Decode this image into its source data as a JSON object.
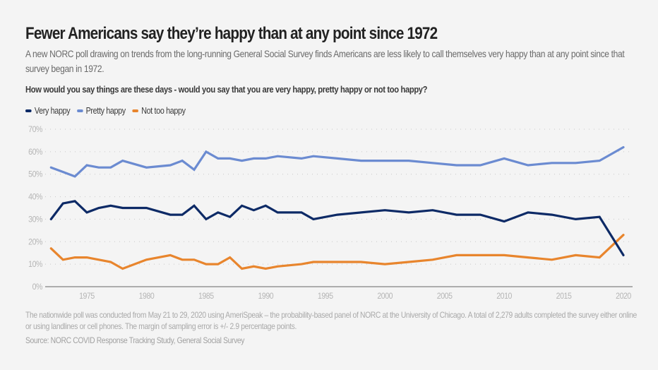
{
  "header": {
    "title": "Fewer Americans say they’re happy than at any point since 1972",
    "subtitle": "A new NORC poll drawing on trends from the long-running General Social Survey finds Americans are less likely to call themselves very happy than at any point since that survey began in 1972.",
    "question": "How would you say things are these days - would you say that you are very happy, pretty happy or not too happy?"
  },
  "footer": {
    "note": "The nationwide poll was conducted from May 21 to 29, 2020 using AmeriSpeak – the probability-based panel of NORC at the University of Chicago. A total of 2,279 adults completed the survey either online or using landlines or cell phones. The margin of sampling error is +/- 2.9 percentage points.",
    "source": "Source: NORC COVID Response Tracking Study, General Social Survey"
  },
  "chart_data": {
    "type": "line",
    "title": "Fewer Americans say they’re happy than at any point since 1972",
    "xlabel": "",
    "ylabel": "",
    "xlim": [
      1972,
      2020
    ],
    "ylim": [
      0,
      70
    ],
    "x_ticks": [
      1975,
      1980,
      1985,
      1990,
      1995,
      2000,
      2005,
      2010,
      2015,
      2020
    ],
    "x_tick_labels": [
      "1975",
      "1980",
      "1985",
      "1990",
      "1995",
      "2000",
      "2005",
      "2010",
      "2015",
      "2020"
    ],
    "y_ticks": [
      0,
      10,
      20,
      30,
      40,
      50,
      60,
      70
    ],
    "y_tick_labels": [
      "0%",
      "10%",
      "20%",
      "30%",
      "40%",
      "50%",
      "60%",
      "70%"
    ],
    "grid": "horizontal-dotted",
    "legend_position": "top-left",
    "x": [
      1972,
      1973,
      1974,
      1975,
      1976,
      1977,
      1978,
      1980,
      1982,
      1983,
      1984,
      1985,
      1986,
      1987,
      1988,
      1989,
      1990,
      1991,
      1993,
      1994,
      1996,
      1998,
      2000,
      2002,
      2004,
      2006,
      2008,
      2010,
      2012,
      2014,
      2016,
      2018,
      2020
    ],
    "series": [
      {
        "name": "Very happy",
        "color": "#0d2a66",
        "values": [
          30,
          37,
          38,
          33,
          35,
          36,
          35,
          35,
          32,
          32,
          36,
          30,
          33,
          31,
          36,
          34,
          36,
          33,
          33,
          30,
          32,
          33,
          34,
          33,
          34,
          32,
          32,
          29,
          33,
          32,
          30,
          31,
          14
        ]
      },
      {
        "name": "Pretty happy",
        "color": "#6b8bd1",
        "values": [
          53,
          51,
          49,
          54,
          53,
          53,
          56,
          53,
          54,
          56,
          52,
          60,
          57,
          57,
          56,
          57,
          57,
          58,
          57,
          58,
          57,
          56,
          56,
          56,
          55,
          54,
          54,
          57,
          54,
          55,
          55,
          56,
          62
        ]
      },
      {
        "name": "Not too happy",
        "color": "#e8852d",
        "values": [
          17,
          12,
          13,
          13,
          12,
          11,
          8,
          12,
          14,
          12,
          12,
          10,
          10,
          13,
          8,
          9,
          8,
          9,
          10,
          11,
          11,
          11,
          10,
          11,
          12,
          14,
          14,
          14,
          13,
          12,
          14,
          13,
          23
        ]
      }
    ]
  }
}
